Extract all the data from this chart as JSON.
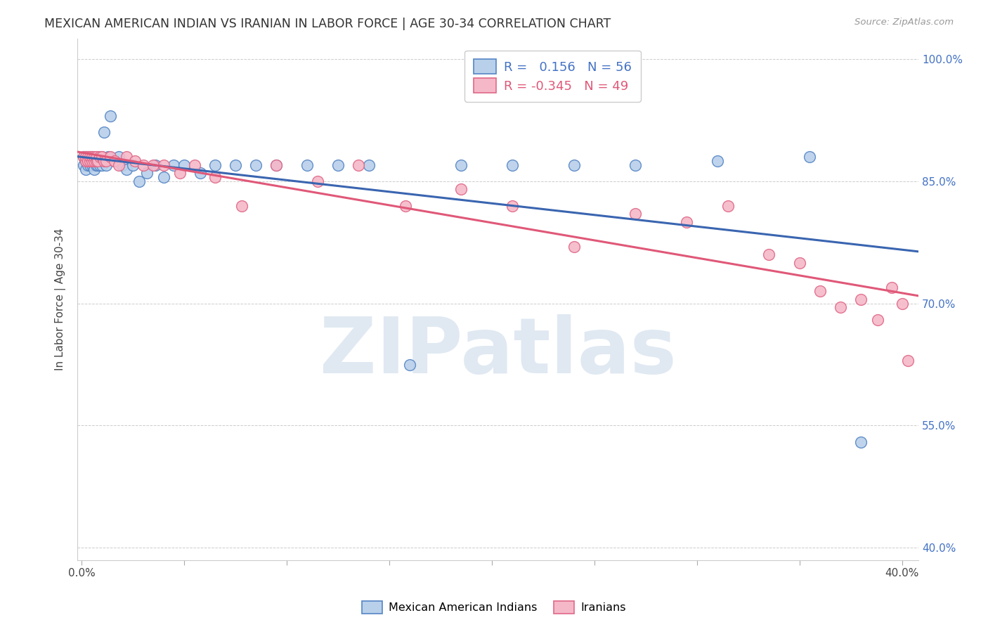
{
  "title": "MEXICAN AMERICAN INDIAN VS IRANIAN IN LABOR FORCE | AGE 30-34 CORRELATION CHART",
  "source": "Source: ZipAtlas.com",
  "ylabel": "In Labor Force | Age 30-34",
  "xlim": [
    -0.002,
    0.408
  ],
  "ylim": [
    0.385,
    1.025
  ],
  "xtick_positions": [
    0.0,
    0.05,
    0.1,
    0.15,
    0.2,
    0.25,
    0.3,
    0.35,
    0.4
  ],
  "xticklabels": [
    "0.0%",
    "",
    "",
    "",
    "",
    "",
    "",
    "",
    "40.0%"
  ],
  "ytick_positions": [
    0.4,
    0.55,
    0.7,
    0.85,
    1.0
  ],
  "yticklabels": [
    "40.0%",
    "55.0%",
    "70.0%",
    "85.0%",
    "100.0%"
  ],
  "blue_R": "0.156",
  "blue_N": "56",
  "pink_R": "-0.345",
  "pink_N": "49",
  "blue_scatter_color": "#b8d0ea",
  "blue_edge_color": "#5585c5",
  "pink_scatter_color": "#f5b8c8",
  "pink_edge_color": "#e06888",
  "blue_line_color": "#3a65b0",
  "pink_line_color": "#e05878",
  "legend_blue_label": "Mexican American Indians",
  "legend_pink_label": "Iranians",
  "watermark_text": "ZIPatlas",
  "blue_x": [
    0.001,
    0.001,
    0.002,
    0.002,
    0.002,
    0.003,
    0.003,
    0.003,
    0.004,
    0.004,
    0.004,
    0.005,
    0.005,
    0.005,
    0.006,
    0.006,
    0.006,
    0.007,
    0.007,
    0.008,
    0.008,
    0.009,
    0.009,
    0.01,
    0.01,
    0.011,
    0.012,
    0.013,
    0.014,
    0.016,
    0.018,
    0.02,
    0.022,
    0.025,
    0.028,
    0.032,
    0.036,
    0.04,
    0.045,
    0.05,
    0.058,
    0.065,
    0.075,
    0.085,
    0.095,
    0.11,
    0.125,
    0.14,
    0.16,
    0.185,
    0.21,
    0.24,
    0.27,
    0.31,
    0.355,
    0.38
  ],
  "blue_y": [
    0.88,
    0.87,
    0.875,
    0.865,
    0.88,
    0.875,
    0.87,
    0.88,
    0.875,
    0.87,
    0.88,
    0.87,
    0.875,
    0.88,
    0.87,
    0.875,
    0.865,
    0.87,
    0.875,
    0.87,
    0.88,
    0.87,
    0.875,
    0.87,
    0.88,
    0.91,
    0.87,
    0.88,
    0.93,
    0.875,
    0.88,
    0.87,
    0.865,
    0.87,
    0.85,
    0.86,
    0.87,
    0.855,
    0.87,
    0.87,
    0.86,
    0.87,
    0.87,
    0.87,
    0.87,
    0.87,
    0.87,
    0.87,
    0.625,
    0.87,
    0.87,
    0.87,
    0.87,
    0.875,
    0.88,
    0.53
  ],
  "pink_x": [
    0.001,
    0.002,
    0.002,
    0.003,
    0.003,
    0.004,
    0.004,
    0.005,
    0.005,
    0.006,
    0.006,
    0.007,
    0.007,
    0.008,
    0.009,
    0.01,
    0.011,
    0.012,
    0.014,
    0.016,
    0.018,
    0.022,
    0.026,
    0.03,
    0.035,
    0.04,
    0.048,
    0.055,
    0.065,
    0.078,
    0.095,
    0.115,
    0.135,
    0.158,
    0.185,
    0.21,
    0.24,
    0.27,
    0.295,
    0.315,
    0.335,
    0.35,
    0.36,
    0.37,
    0.38,
    0.388,
    0.395,
    0.4,
    0.403
  ],
  "pink_y": [
    0.88,
    0.875,
    0.88,
    0.88,
    0.875,
    0.875,
    0.88,
    0.875,
    0.88,
    0.875,
    0.88,
    0.875,
    0.88,
    0.875,
    0.88,
    0.88,
    0.875,
    0.875,
    0.88,
    0.875,
    0.87,
    0.88,
    0.875,
    0.87,
    0.87,
    0.87,
    0.86,
    0.87,
    0.855,
    0.82,
    0.87,
    0.85,
    0.87,
    0.82,
    0.84,
    0.82,
    0.77,
    0.81,
    0.8,
    0.82,
    0.76,
    0.75,
    0.715,
    0.695,
    0.705,
    0.68,
    0.72,
    0.7,
    0.63
  ]
}
